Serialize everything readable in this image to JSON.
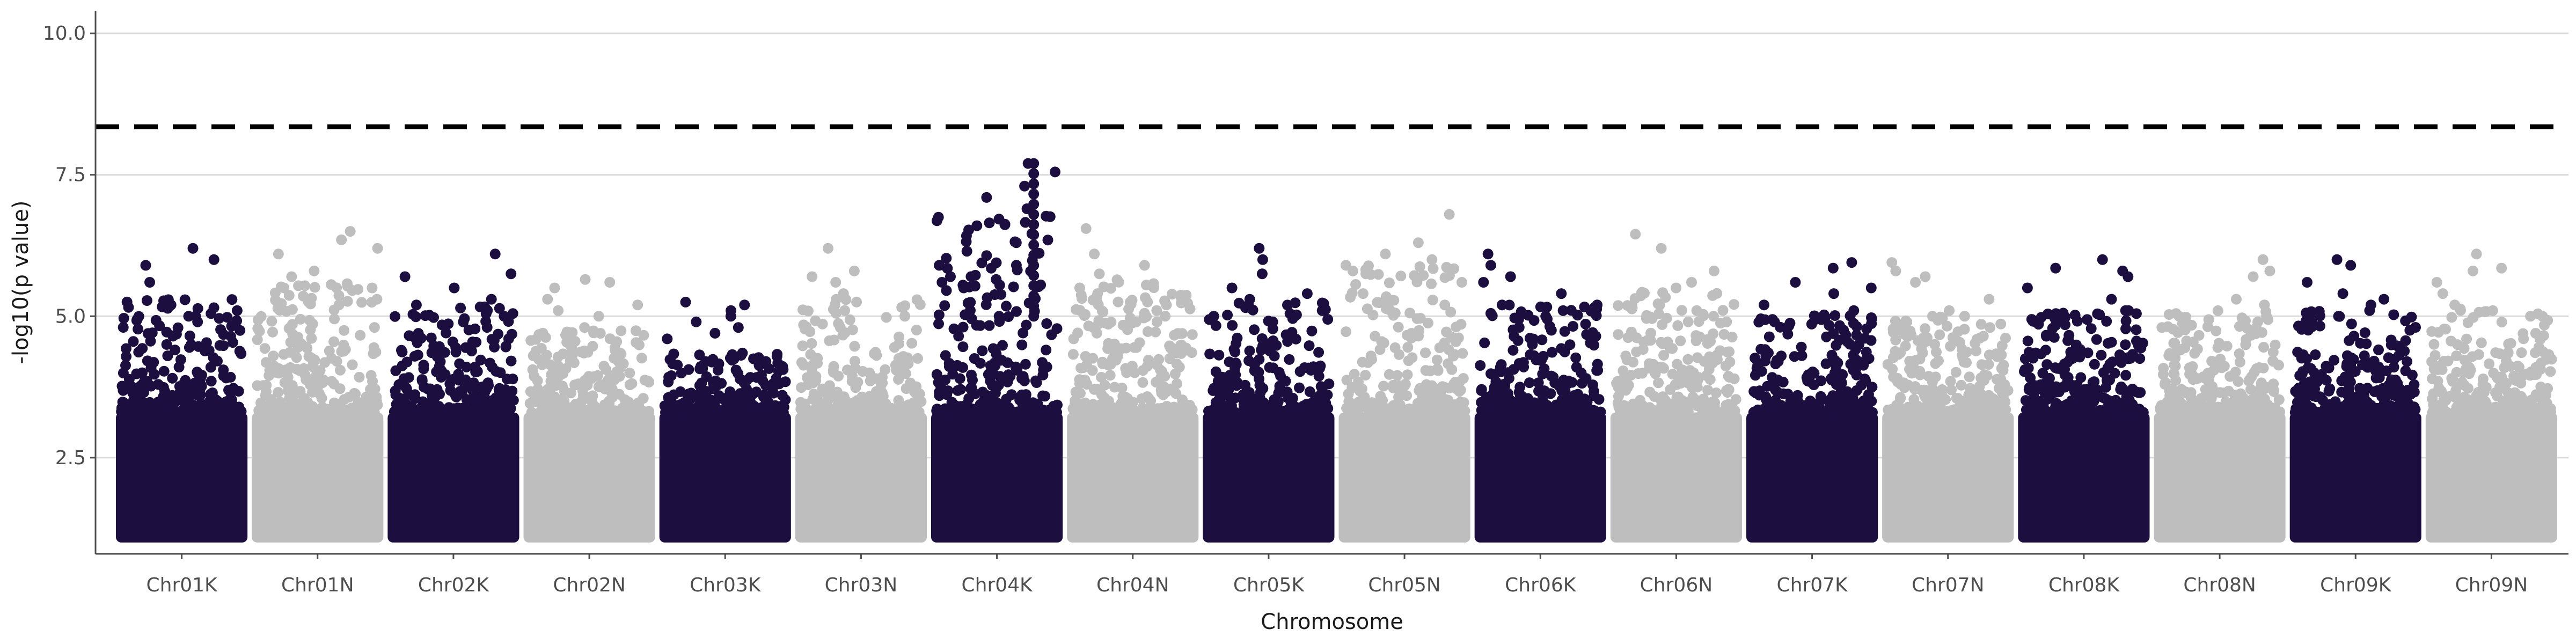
{
  "chart_data": {
    "type": "scatter",
    "title": "",
    "xlabel": "Chromosome",
    "ylabel": "-log10(p value)",
    "ylim": [
      0.8,
      10.4
    ],
    "yticks": [
      "2.5",
      "5.0",
      "7.5",
      "10.0"
    ],
    "ytick_values": [
      2.5,
      5.0,
      7.5,
      10.0
    ],
    "grid": "horizontal major lines",
    "threshold": 8.35,
    "threshold_style": "dashed black",
    "colors": [
      "#1c0f40",
      "#bebebe"
    ],
    "categories": [
      "Chr01K",
      "Chr01N",
      "Chr02K",
      "Chr02N",
      "Chr03K",
      "Chr03N",
      "Chr04K",
      "Chr04N",
      "Chr05K",
      "Chr05N",
      "Chr06K",
      "Chr06N",
      "Chr07K",
      "Chr07N",
      "Chr08K",
      "Chr08N",
      "Chr09K",
      "Chr09N"
    ],
    "series": [
      {
        "chromosome": "Chr01K",
        "color": "#1c0f40",
        "max": 6.2,
        "peaks": [
          6.0,
          5.9,
          5.6,
          5.2,
          5.1,
          5.0,
          4.9
        ]
      },
      {
        "chromosome": "Chr01N",
        "color": "#bebebe",
        "max": 6.5,
        "peaks": [
          6.35,
          6.2,
          6.1,
          5.8,
          5.7,
          5.5,
          5.3
        ]
      },
      {
        "chromosome": "Chr02K",
        "color": "#1c0f40",
        "max": 6.1,
        "peaks": [
          5.75,
          5.7,
          5.5,
          5.3,
          5.2,
          5.0,
          4.9
        ]
      },
      {
        "chromosome": "Chr02N",
        "color": "#bebebe",
        "max": 5.65,
        "peaks": [
          5.6,
          5.5,
          5.3,
          5.2,
          5.1,
          5.0,
          4.8
        ]
      },
      {
        "chromosome": "Chr03K",
        "color": "#1c0f40",
        "max": 5.25,
        "peaks": [
          5.2,
          5.1,
          5.0,
          4.9,
          4.8,
          4.7,
          4.6
        ]
      },
      {
        "chromosome": "Chr03N",
        "color": "#bebebe",
        "max": 6.2,
        "peaks": [
          5.8,
          5.7,
          5.6,
          5.4,
          5.2,
          5.0,
          4.8
        ]
      },
      {
        "chromosome": "Chr04K",
        "color": "#1c0f40",
        "max": 7.7,
        "peaks": [
          7.55,
          7.3,
          7.1,
          6.9,
          6.6,
          6.3,
          5.9,
          5.7,
          5.5
        ]
      },
      {
        "chromosome": "Chr04N",
        "color": "#bebebe",
        "max": 6.55,
        "peaks": [
          6.1,
          5.9,
          5.75,
          5.5,
          5.2,
          5.0,
          4.9
        ]
      },
      {
        "chromosome": "Chr05K",
        "color": "#1c0f40",
        "max": 6.2,
        "peaks": [
          6.0,
          5.75,
          5.5,
          5.4,
          5.2,
          5.1,
          5.0
        ]
      },
      {
        "chromosome": "Chr05N",
        "color": "#bebebe",
        "max": 6.8,
        "peaks": [
          6.3,
          6.1,
          6.0,
          5.9,
          5.8,
          5.6,
          5.4
        ]
      },
      {
        "chromosome": "Chr06K",
        "color": "#1c0f40",
        "max": 6.1,
        "peaks": [
          5.9,
          5.7,
          5.6,
          5.4,
          5.2,
          5.1,
          5.0
        ]
      },
      {
        "chromosome": "Chr06N",
        "color": "#bebebe",
        "max": 6.45,
        "peaks": [
          6.2,
          5.8,
          5.6,
          5.4,
          5.2,
          5.1,
          5.0
        ]
      },
      {
        "chromosome": "Chr07K",
        "color": "#1c0f40",
        "max": 5.95,
        "peaks": [
          5.85,
          5.6,
          5.5,
          5.4,
          5.2,
          5.1,
          4.9
        ]
      },
      {
        "chromosome": "Chr07N",
        "color": "#bebebe",
        "max": 5.95,
        "peaks": [
          5.8,
          5.7,
          5.6,
          5.3,
          5.1,
          5.0,
          4.9
        ]
      },
      {
        "chromosome": "Chr08K",
        "color": "#1c0f40",
        "max": 6.0,
        "peaks": [
          5.85,
          5.8,
          5.7,
          5.5,
          5.3,
          5.1,
          4.9
        ]
      },
      {
        "chromosome": "Chr08N",
        "color": "#bebebe",
        "max": 6.0,
        "peaks": [
          5.8,
          5.7,
          5.3,
          5.2,
          5.0,
          4.9,
          4.8
        ]
      },
      {
        "chromosome": "Chr09K",
        "color": "#1c0f40",
        "max": 6.0,
        "peaks": [
          5.9,
          5.6,
          5.4,
          5.3,
          5.2,
          5.1,
          5.0
        ]
      },
      {
        "chromosome": "Chr09N",
        "color": "#bebebe",
        "max": 6.1,
        "peaks": [
          5.85,
          5.8,
          5.6,
          5.4,
          5.2,
          5.1,
          5.0
        ]
      }
    ]
  }
}
